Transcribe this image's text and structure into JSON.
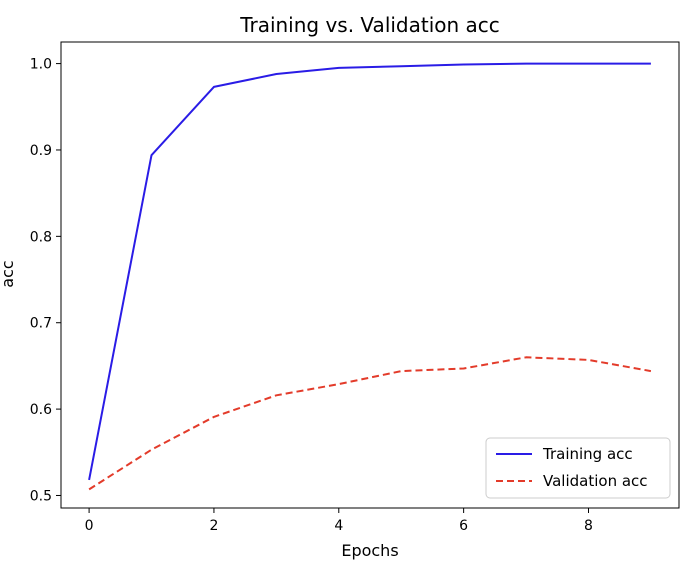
{
  "chart_data": {
    "type": "line",
    "title": "Training vs. Validation acc",
    "xlabel": "Epochs",
    "ylabel": "acc",
    "x": [
      0,
      1,
      2,
      3,
      4,
      5,
      6,
      7,
      8,
      9
    ],
    "xlim": [
      -0.45,
      9.45
    ],
    "ylim": [
      0.4855,
      1.025
    ],
    "xticks": [
      0,
      2,
      4,
      6,
      8
    ],
    "yticks": [
      0.5,
      0.6,
      0.7,
      0.8,
      0.9,
      1.0
    ],
    "xtick_labels": [
      "0",
      "2",
      "4",
      "6",
      "8"
    ],
    "ytick_labels": [
      "0.5",
      "0.6",
      "0.7",
      "0.8",
      "0.9",
      "1.0"
    ],
    "grid": false,
    "legend_position": "lower-right",
    "series": [
      {
        "name": "Training acc",
        "color": "#2a1ce6",
        "style": "solid",
        "values": [
          0.518,
          0.894,
          0.973,
          0.988,
          0.995,
          0.997,
          0.999,
          1.0,
          1.0,
          1.0
        ]
      },
      {
        "name": "Validation acc",
        "color": "#e33b2a",
        "style": "dashed",
        "values": [
          0.507,
          0.553,
          0.591,
          0.616,
          0.629,
          0.644,
          0.647,
          0.66,
          0.657,
          0.644
        ]
      }
    ]
  }
}
